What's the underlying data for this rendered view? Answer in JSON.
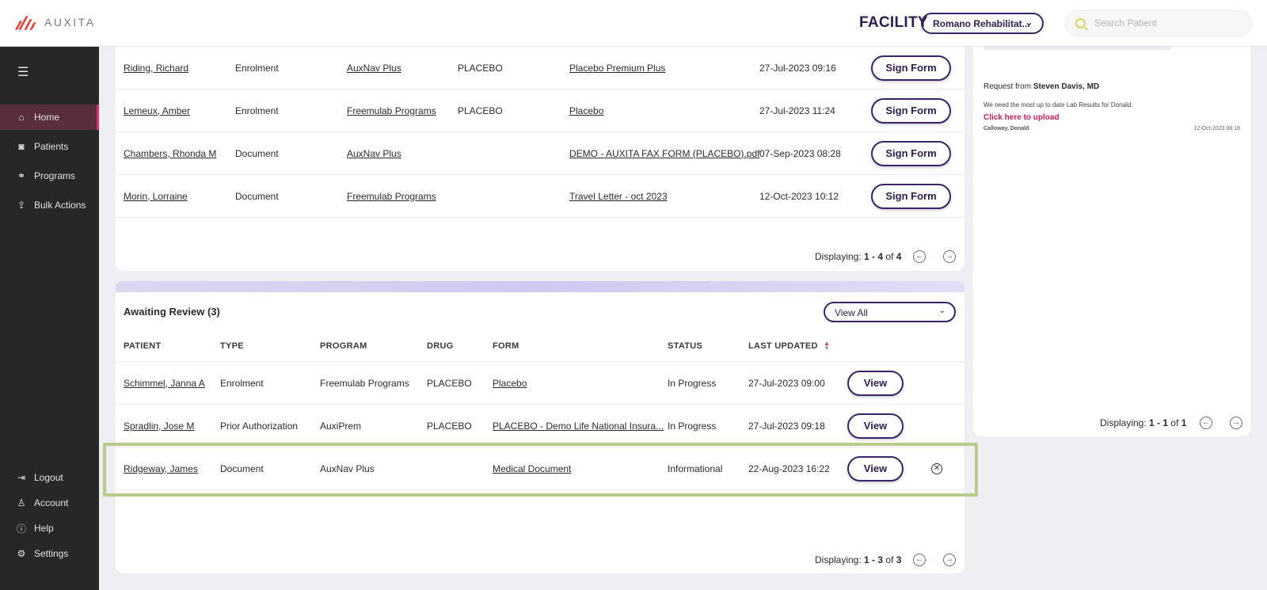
{
  "header": {
    "logo_text": "AUXITA",
    "facility_label": "FACILITY",
    "facility_value": "Romano Rehabilitat...",
    "search_placeholder": "Search Patient"
  },
  "sidebar": {
    "items": [
      {
        "label": "Home",
        "icon": "home-icon"
      },
      {
        "label": "Patients",
        "icon": "patients-icon"
      },
      {
        "label": "Programs",
        "icon": "programs-icon"
      },
      {
        "label": "Bulk Actions",
        "icon": "upload-icon"
      }
    ],
    "bottom_items": [
      {
        "label": "Logout",
        "icon": "logout-icon"
      },
      {
        "label": "Account",
        "icon": "user-icon"
      },
      {
        "label": "Help",
        "icon": "help-icon"
      },
      {
        "label": "Settings",
        "icon": "gear-icon"
      }
    ]
  },
  "pending_signature": {
    "rows": [
      {
        "patient": "Riding, Richard",
        "type": "Enrolment",
        "program": "AuxNav Plus",
        "drug": "PLACEBO",
        "form": "Placebo Premium Plus",
        "updated": "27-Jul-2023 09:16",
        "action": "Sign Form"
      },
      {
        "patient": "Lemeux, Amber",
        "type": "Enrolment",
        "program": "Freemulab Programs",
        "drug": "PLACEBO",
        "form": "Placebo",
        "updated": "27-Jul-2023 11:24",
        "action": "Sign Form"
      },
      {
        "patient": "Chambers, Rhonda M",
        "type": "Document",
        "program": "AuxNav Plus",
        "drug": "",
        "form": "DEMO - AUXITA FAX FORM (PLACEBO).pdf",
        "updated": "07-Sep-2023 08:28",
        "action": "Sign Form"
      },
      {
        "patient": "Morin, Lorraine",
        "type": "Document",
        "program": "Freemulab Programs",
        "drug": "",
        "form": "Travel Letter - oct 2023",
        "updated": "12-Oct-2023 10:12",
        "action": "Sign Form"
      }
    ],
    "pager": {
      "prefix": "Displaying:",
      "range": "1 - 4",
      "of": "of",
      "total": "4"
    }
  },
  "awaiting_review": {
    "title": "Awaiting Review",
    "count": "(3)",
    "filter_value": "View All",
    "columns": [
      "PATIENT",
      "TYPE",
      "PROGRAM",
      "DRUG",
      "FORM",
      "STATUS",
      "LAST UPDATED"
    ],
    "rows": [
      {
        "patient": "Schimmel, Janna A",
        "type": "Enrolment",
        "program": "Freemulab Programs",
        "drug": "PLACEBO",
        "form": "Placebo",
        "status": "In Progress",
        "updated": "27-Jul-2023 09:00",
        "action": "View"
      },
      {
        "patient": "Spradlin, Jose M",
        "type": "Prior Authorization",
        "program": "AuxiPrem",
        "drug": "PLACEBO",
        "form": "PLACEBO - Demo Life National Insura...",
        "status": "In Progress",
        "updated": "27-Jul-2023 09:18",
        "action": "View"
      },
      {
        "patient": "Ridgeway, James",
        "type": "Document",
        "program": "AuxNav Plus",
        "drug": "",
        "form": "Medical Document",
        "status": "Informational",
        "updated": "22-Aug-2023 16:22",
        "action": "View"
      }
    ],
    "pager": {
      "prefix": "Displaying:",
      "range": "1 - 3",
      "of": "of",
      "total": "3"
    }
  },
  "requests": {
    "from_prefix": "Request from",
    "from_name": "Steven Davis, MD",
    "message": "We need the most up to date Lab Results for Donald.",
    "link": "Click here to upload",
    "patient": "Calloway, Donald",
    "date": "12-Oct-2023 08:18",
    "pager": {
      "prefix": "Displaying:",
      "range": "1 - 1",
      "of": "of",
      "total": "1"
    }
  },
  "colors": {
    "accent": "#3a2468",
    "active_nav": "#d6336c",
    "highlight": "#b7cc8a",
    "link_pink": "#cc1f5a"
  }
}
